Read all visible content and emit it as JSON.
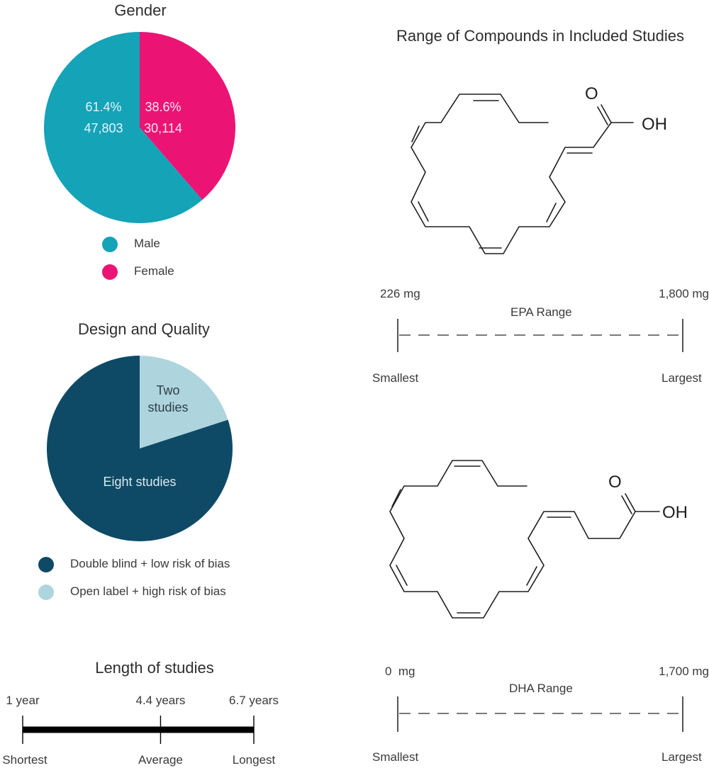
{
  "charts": {
    "gender": {
      "title": "Gender",
      "legend": [
        {
          "label": "Male",
          "color": "#14a3b7"
        },
        {
          "label": "Female",
          "color": "#eb1475"
        }
      ]
    },
    "design": {
      "title": "Design and Quality",
      "legend": [
        {
          "label": "Double blind + low risk of bias",
          "color": "#0e4a66"
        },
        {
          "label": "Open label + high risk of bias",
          "color": "#aed5de"
        }
      ]
    },
    "length": {
      "title": "Length of studies",
      "points": [
        {
          "value": "1 year",
          "label": "Shortest"
        },
        {
          "value": "4.4 years",
          "label": "Average"
        },
        {
          "value": "6.7 years",
          "label": "Longest"
        }
      ]
    },
    "compounds": {
      "title": "Range of Compounds in Included Studies",
      "epa": {
        "name": "EPA Range",
        "min": "226 mg",
        "max": "1,800 mg",
        "min_label": "Smallest",
        "max_label": "Largest",
        "oxygen": "O",
        "hydroxyl": "OH"
      },
      "dha": {
        "name": "DHA Range",
        "min": "0  mg",
        "max": "1,700 mg",
        "min_label": "Smallest",
        "max_label": "Largest",
        "oxygen": "O",
        "hydroxyl": "OH"
      }
    }
  },
  "chart_data": [
    {
      "type": "pie",
      "title": "Gender",
      "categories": [
        "Male",
        "Female"
      ],
      "values": [
        47803,
        30114
      ],
      "percent_labels": [
        "61.4%",
        "38.6%"
      ],
      "count_labels": [
        "47,803",
        "30,114"
      ],
      "colors": [
        "#14a3b7",
        "#eb1475"
      ]
    },
    {
      "type": "pie",
      "title": "Design and Quality",
      "categories": [
        "Double blind + low risk of bias",
        "Open label + high risk of bias"
      ],
      "values": [
        8,
        2
      ],
      "slice_labels": [
        "Eight studies",
        "Two studies"
      ],
      "colors": [
        "#0e4a66",
        "#aed5de"
      ]
    },
    {
      "type": "range",
      "title": "Length of studies",
      "unit": "years",
      "min": 1,
      "mean": 4.4,
      "max": 6.7
    }
  ]
}
